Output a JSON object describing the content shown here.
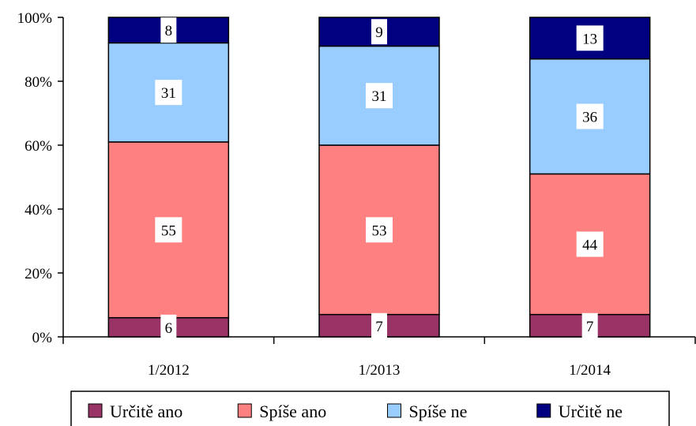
{
  "chart_data": {
    "type": "bar",
    "stacked": true,
    "percent_stacked": true,
    "categories": [
      "1/2012",
      "1/2013",
      "1/2014"
    ],
    "series": [
      {
        "name": "Určitě ano",
        "values": [
          6,
          7,
          7
        ],
        "color": "#993366"
      },
      {
        "name": "Spíše ano",
        "values": [
          55,
          53,
          44
        ],
        "color": "#FF8080"
      },
      {
        "name": "Spíše ne",
        "values": [
          31,
          31,
          36
        ],
        "color": "#99CCFF"
      },
      {
        "name": "Určitě ne",
        "values": [
          8,
          9,
          13
        ],
        "color": "#000080"
      }
    ],
    "yticks": [
      "0%",
      "20%",
      "40%",
      "60%",
      "80%",
      "100%"
    ],
    "ylim": [
      0,
      100
    ],
    "grid": false,
    "legend_position": "bottom",
    "data_labels": true
  }
}
